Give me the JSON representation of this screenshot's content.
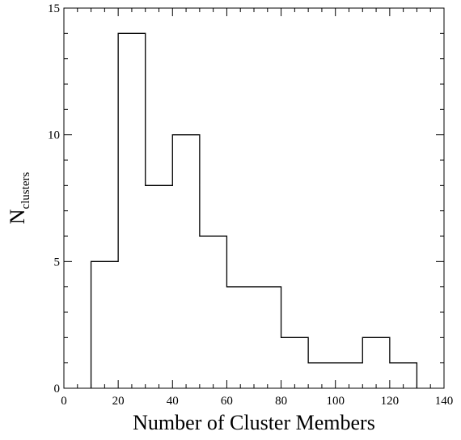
{
  "chart_data": {
    "type": "bar",
    "histogram": true,
    "bin_edges": [
      10,
      20,
      30,
      40,
      50,
      60,
      70,
      80,
      90,
      100,
      110,
      120,
      130
    ],
    "values": [
      5,
      14,
      8,
      10,
      6,
      4,
      4,
      2,
      1,
      1,
      2,
      1
    ],
    "xlim": [
      0,
      140
    ],
    "ylim": [
      0,
      15
    ],
    "x_ticks": [
      "0",
      "20",
      "40",
      "60",
      "80",
      "100",
      "120",
      "140"
    ],
    "y_ticks": [
      "0",
      "5",
      "10",
      "15"
    ],
    "xlabel": "Number of Cluster Members",
    "ylabel_main": "N",
    "ylabel_sub": "clusters",
    "grid": false,
    "legend": "none",
    "colors": {
      "line": "#000000",
      "background": "#ffffff"
    }
  }
}
